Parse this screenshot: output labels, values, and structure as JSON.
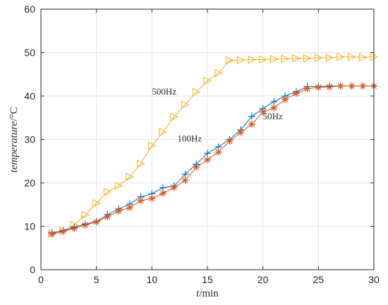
{
  "chart_data": {
    "type": "line",
    "xlabel_var": "t",
    "xlabel_unit": "/min",
    "ylabel_var": "temperature",
    "ylabel_unit": "/°C",
    "xlim": [
      0,
      30
    ],
    "ylim": [
      0,
      60
    ],
    "xticks": [
      0,
      5,
      10,
      15,
      20,
      25,
      30
    ],
    "yticks": [
      0,
      10,
      20,
      30,
      40,
      50,
      60
    ],
    "grid": true,
    "series": [
      {
        "name": "500Hz",
        "color": "#EDB120",
        "marker": "triangle-right",
        "x": [
          1,
          2,
          3,
          4,
          5,
          6,
          7,
          8,
          9,
          10,
          11,
          12,
          13,
          14,
          15,
          16,
          17,
          18,
          19,
          20,
          21,
          22,
          23,
          24,
          25,
          26,
          27,
          28,
          29,
          30
        ],
        "y": [
          8.3,
          9.0,
          10.3,
          12.6,
          15.3,
          17.9,
          19.3,
          21.4,
          24.4,
          28.6,
          31.7,
          35.2,
          38.0,
          40.9,
          43.5,
          45.3,
          48.2,
          48.3,
          48.4,
          48.4,
          48.5,
          48.6,
          48.7,
          48.7,
          48.8,
          48.8,
          49.0,
          49.0,
          48.9,
          49.0
        ]
      },
      {
        "name": "100Hz",
        "color": "#0072BD",
        "marker": "plus",
        "x": [
          1,
          2,
          3,
          4,
          5,
          6,
          7,
          8,
          9,
          10,
          11,
          12,
          13,
          14,
          15,
          16,
          17,
          18,
          19,
          20,
          21,
          22,
          23,
          24,
          25,
          26,
          27,
          28,
          29,
          30
        ],
        "y": [
          8.5,
          9.0,
          9.8,
          10.5,
          11.1,
          12.7,
          14.0,
          15.1,
          16.8,
          17.5,
          18.9,
          19.3,
          22.0,
          24.3,
          26.8,
          28.3,
          30.0,
          32.2,
          35.3,
          37.1,
          38.7,
          40.0,
          41.0,
          42.2,
          42.2,
          42.3,
          42.3,
          42.3,
          42.3,
          42.3
        ]
      },
      {
        "name": "50Hz",
        "color": "#D95319",
        "marker": "asterisk",
        "x": [
          1,
          2,
          3,
          4,
          5,
          6,
          7,
          8,
          9,
          10,
          11,
          12,
          13,
          14,
          15,
          16,
          17,
          18,
          19,
          20,
          21,
          22,
          23,
          24,
          25,
          26,
          27,
          28,
          29,
          30
        ],
        "y": [
          8.2,
          8.8,
          9.5,
          10.3,
          11.0,
          12.2,
          13.5,
          14.3,
          15.9,
          16.4,
          17.6,
          18.9,
          20.6,
          23.6,
          25.3,
          27.1,
          29.6,
          31.6,
          33.5,
          36.3,
          37.3,
          39.2,
          40.6,
          41.7,
          42.0,
          42.1,
          42.3,
          42.3,
          42.3,
          42.3
        ]
      }
    ],
    "annotations": [
      {
        "text": "500Hz",
        "x": 10.0,
        "y": 40.3
      },
      {
        "text": "100Hz",
        "x": 12.3,
        "y": 29.5
      },
      {
        "text": "50Hz",
        "x": 20.0,
        "y": 34.6
      }
    ]
  }
}
